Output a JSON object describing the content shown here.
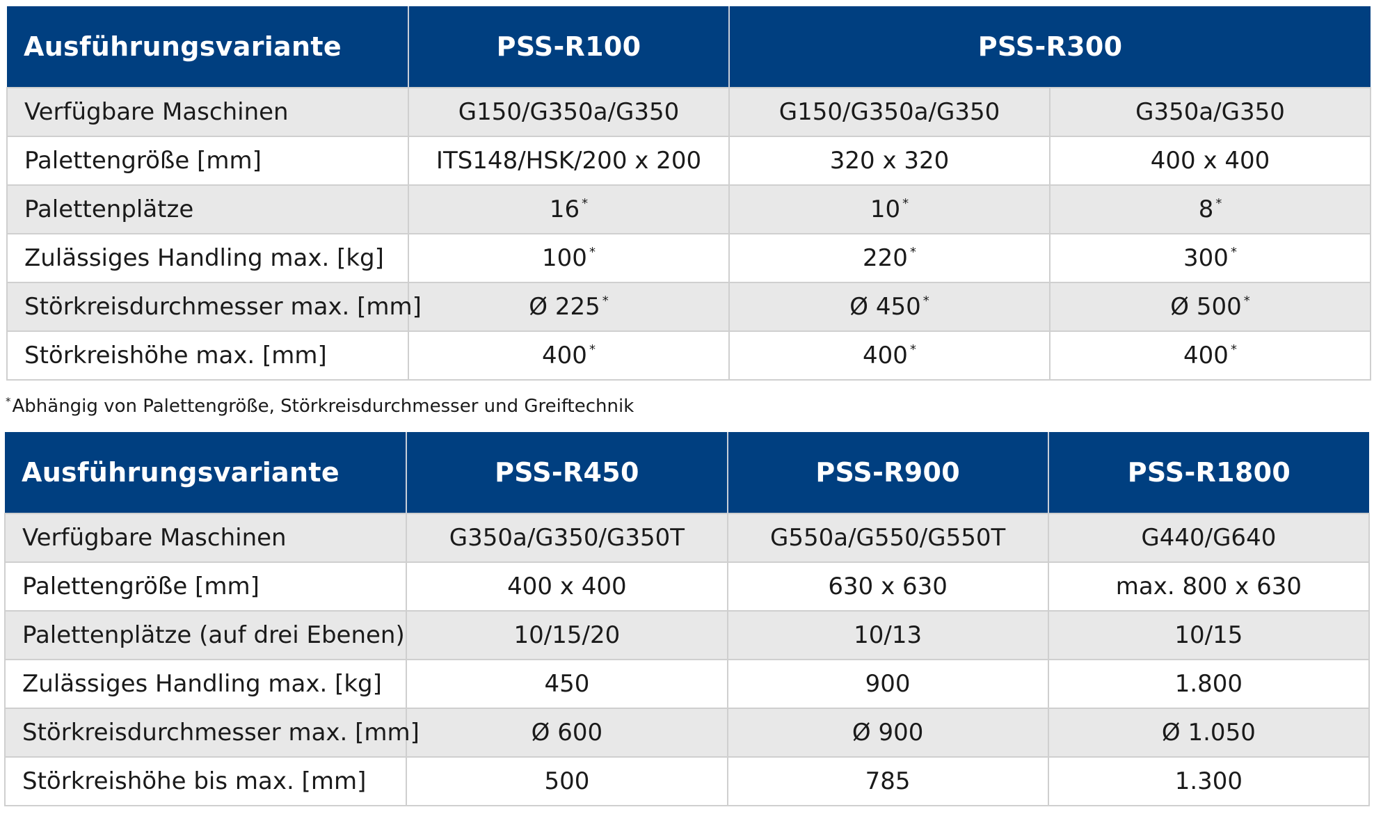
{
  "table1": {
    "headers": [
      "Ausführungsvariante",
      "PSS-R100",
      "PSS-R300"
    ],
    "rows": [
      {
        "label": "Verfügbare Maschinen",
        "values": [
          "G150/G350a/G350",
          "G150/G350a/G350",
          "G350a/G350"
        ]
      },
      {
        "label": "Palettengröße [mm]",
        "values": [
          "ITS148/HSK/200 x 200",
          "320 x 320",
          "400 x 400"
        ]
      },
      {
        "label": "Palettenplätze",
        "values": [
          "16",
          "10",
          "8"
        ]
      },
      {
        "label": "Zulässiges Handling max. [kg]",
        "values": [
          "100",
          "220",
          "300"
        ]
      },
      {
        "label": "Störkreisdurchmesser max. [mm]",
        "values": [
          "Ø 225",
          "Ø 450",
          "Ø 500"
        ]
      },
      {
        "label": "Störkreishöhe max. [mm]",
        "values": [
          "400",
          "400",
          "400"
        ]
      }
    ],
    "asterisk": "*"
  },
  "footnote": {
    "marker": "*",
    "text": "Abhängig von Palettengröße, Störkreisdurchmesser und Greiftechnik"
  },
  "table2": {
    "headers": [
      "Ausführungsvariante",
      "PSS-R450",
      "PSS-R900",
      "PSS-R1800"
    ],
    "rows": [
      {
        "label": "Verfügbare Maschinen",
        "values": [
          "G350a/G350/G350T",
          "G550a/G550/G550T",
          "G440/G640"
        ]
      },
      {
        "label": "Palettengröße [mm]",
        "values": [
          "400 x 400",
          "630 x 630",
          "max. 800 x 630"
        ]
      },
      {
        "label": "Palettenplätze (auf drei Ebenen)",
        "values": [
          "10/15/20",
          "10/13",
          "10/15"
        ]
      },
      {
        "label": "Zulässiges Handling max. [kg]",
        "values": [
          "450",
          "900",
          "1.800"
        ]
      },
      {
        "label": "Störkreisdurchmesser max. [mm]",
        "values": [
          "Ø 600",
          "Ø 900",
          "Ø 1.050"
        ]
      },
      {
        "label": "Störkreishöhe bis max. [mm]",
        "values": [
          "500",
          "785",
          "1.300"
        ]
      }
    ]
  },
  "colors": {
    "header_bg": "#003f80",
    "header_text": "#ffffff",
    "shaded_row": "#e8e8e8",
    "border": "#cfcfcf"
  }
}
